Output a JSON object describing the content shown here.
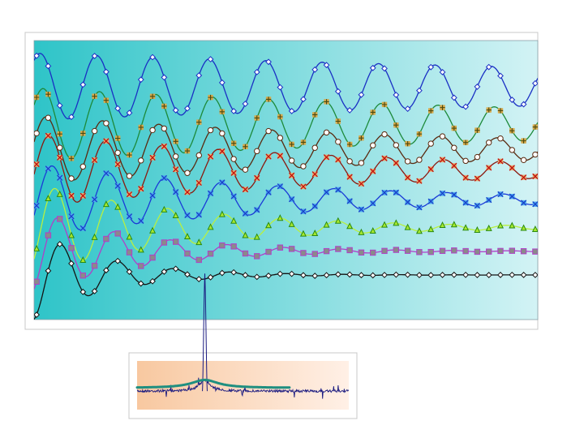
{
  "chart_data": [
    {
      "type": "line",
      "title": "",
      "xlabel": "",
      "ylabel": "",
      "grid": false,
      "legend": "none",
      "background_gradient": [
        "#2ec4c8",
        "#d3f3f5"
      ],
      "xlim": [
        0,
        1
      ],
      "ylim": [
        0,
        1
      ],
      "series": [
        {
          "marker": "diamond",
          "line_color": "#1a2fc4",
          "marker_fill": "#ffffff",
          "marker_stroke": "#1a2fc4",
          "baseline": 0.835,
          "amplitude": 0.12,
          "decay": 0.55,
          "period": 0.112,
          "phase": 0.012
        },
        {
          "marker": "plus-square",
          "line_color": "#1d8a3a",
          "marker_fill": "#d6a84a",
          "marker_stroke": "#4a4a10",
          "baseline": 0.7,
          "amplitude": 0.13,
          "decay": 0.8,
          "period": 0.112,
          "phase": 0.018
        },
        {
          "marker": "circle",
          "line_color": "#5a2a10",
          "marker_fill": "#ffffff",
          "marker_stroke": "#5a2a10",
          "baseline": 0.61,
          "amplitude": 0.12,
          "decay": 1.15,
          "period": 0.112,
          "phase": 0.024
        },
        {
          "marker": "x-square",
          "line_color": "#8a1a10",
          "marker_fill": "#e6b070",
          "marker_stroke": "#c01010",
          "baseline": 0.535,
          "amplitude": 0.13,
          "decay": 1.5,
          "period": 0.112,
          "phase": 0.03
        },
        {
          "marker": "x-square",
          "line_color": "#1a3ad8",
          "marker_fill": "#4aa8f0",
          "marker_stroke": "#1a40c8",
          "baseline": 0.43,
          "amplitude": 0.13,
          "decay": 2.0,
          "period": 0.112,
          "phase": 0.036
        },
        {
          "marker": "triangle",
          "line_color": "#b8f040",
          "marker_fill": "#a8e830",
          "marker_stroke": "#2a8a10",
          "baseline": 0.33,
          "amplitude": 0.16,
          "decay": 3.2,
          "period": 0.112,
          "phase": 0.042
        },
        {
          "marker": "square",
          "line_color": "#b040c8",
          "marker_fill": "#8a8a8a",
          "marker_stroke": "#b040c8",
          "baseline": 0.245,
          "amplitude": 0.15,
          "decay": 4.8,
          "period": 0.112,
          "phase": 0.048
        },
        {
          "marker": "diamond",
          "line_color": "#141414",
          "marker_fill": "#ffffff",
          "marker_stroke": "#141414",
          "baseline": 0.16,
          "amplitude": 0.16,
          "decay": 7.0,
          "period": 0.112,
          "phase": 0.054
        }
      ]
    },
    {
      "type": "line",
      "title": "",
      "xlabel": "",
      "ylabel": "",
      "grid": false,
      "legend": "none",
      "background_gradient": [
        "#f8c8a0",
        "#fff0e6"
      ],
      "xlim": [
        0,
        1
      ],
      "ylim": [
        0,
        1
      ],
      "series": [
        {
          "role": "noisy spectrum",
          "line_color": "#1a1a80",
          "peak_center": 0.32,
          "peak_height": 0.93
        },
        {
          "role": "fit curve",
          "line_color": "#1f8f80",
          "peak_center": 0.32,
          "peak_height": 0.35,
          "end": 0.72
        },
        {
          "role": "projection line",
          "line_color": "#1a1a80"
        }
      ]
    }
  ]
}
